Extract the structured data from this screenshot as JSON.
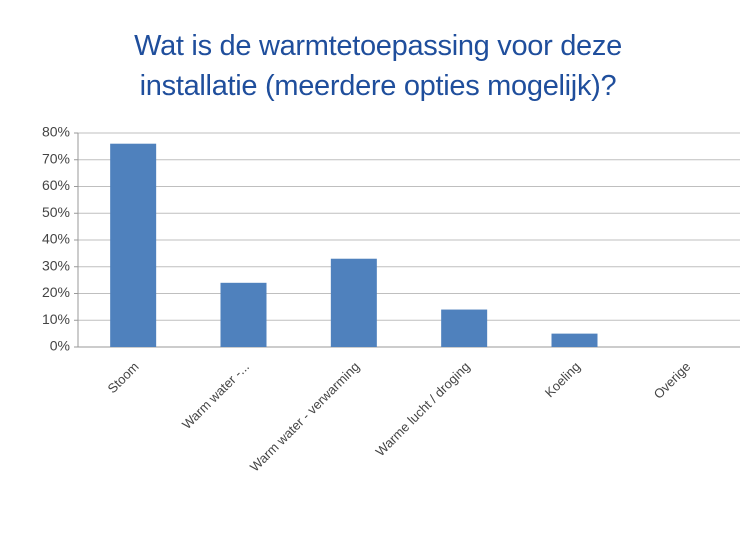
{
  "chart_data": {
    "type": "bar",
    "title": "Wat is de warmtetoepassing voor deze installatie (meerdere opties mogelijk)?",
    "categories": [
      "Stoom",
      "Warm water -...",
      "Warm water - verwarming",
      "Warme lucht / droging",
      "Koeling",
      "Overige"
    ],
    "values": [
      76,
      24,
      33,
      14,
      5,
      0
    ],
    "color": "#4f81bd",
    "ylim": [
      0,
      80
    ],
    "yticks": [
      {
        "value": 0,
        "label": "0%"
      },
      {
        "value": 10,
        "label": "10%"
      },
      {
        "value": 20,
        "label": "20%"
      },
      {
        "value": 30,
        "label": "30%"
      },
      {
        "value": 40,
        "label": "40%"
      },
      {
        "value": 50,
        "label": "50%"
      },
      {
        "value": 60,
        "label": "60%"
      },
      {
        "value": 70,
        "label": "70%"
      },
      {
        "value": 80,
        "label": "80%"
      }
    ],
    "grid": true
  }
}
